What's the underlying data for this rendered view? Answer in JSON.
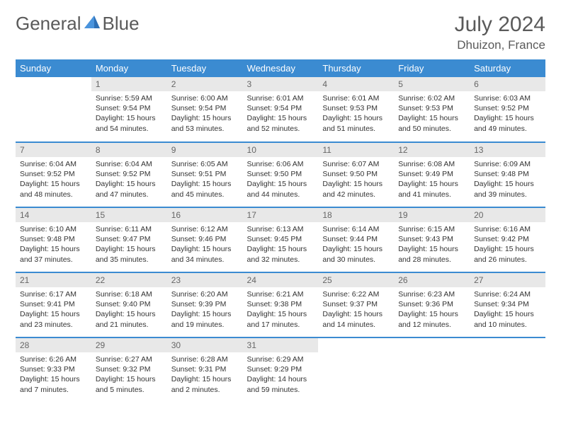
{
  "logo": {
    "word1": "General",
    "word2": "Blue"
  },
  "title": "July 2024",
  "location": "Dhuizon, France",
  "colors": {
    "header_bg": "#3b8bd1",
    "header_fg": "#ffffff",
    "row_divider": "#3b8bd1",
    "daynum_bg": "#e8e8e8",
    "text": "#333333",
    "muted": "#5a5a5a"
  },
  "weekdays": [
    "Sunday",
    "Monday",
    "Tuesday",
    "Wednesday",
    "Thursday",
    "Friday",
    "Saturday"
  ],
  "weeks": [
    [
      {
        "n": "",
        "sr": "",
        "ss": "",
        "dl": ""
      },
      {
        "n": "1",
        "sr": "5:59 AM",
        "ss": "9:54 PM",
        "dl": "15 hours and 54 minutes."
      },
      {
        "n": "2",
        "sr": "6:00 AM",
        "ss": "9:54 PM",
        "dl": "15 hours and 53 minutes."
      },
      {
        "n": "3",
        "sr": "6:01 AM",
        "ss": "9:54 PM",
        "dl": "15 hours and 52 minutes."
      },
      {
        "n": "4",
        "sr": "6:01 AM",
        "ss": "9:53 PM",
        "dl": "15 hours and 51 minutes."
      },
      {
        "n": "5",
        "sr": "6:02 AM",
        "ss": "9:53 PM",
        "dl": "15 hours and 50 minutes."
      },
      {
        "n": "6",
        "sr": "6:03 AM",
        "ss": "9:52 PM",
        "dl": "15 hours and 49 minutes."
      }
    ],
    [
      {
        "n": "7",
        "sr": "6:04 AM",
        "ss": "9:52 PM",
        "dl": "15 hours and 48 minutes."
      },
      {
        "n": "8",
        "sr": "6:04 AM",
        "ss": "9:52 PM",
        "dl": "15 hours and 47 minutes."
      },
      {
        "n": "9",
        "sr": "6:05 AM",
        "ss": "9:51 PM",
        "dl": "15 hours and 45 minutes."
      },
      {
        "n": "10",
        "sr": "6:06 AM",
        "ss": "9:50 PM",
        "dl": "15 hours and 44 minutes."
      },
      {
        "n": "11",
        "sr": "6:07 AM",
        "ss": "9:50 PM",
        "dl": "15 hours and 42 minutes."
      },
      {
        "n": "12",
        "sr": "6:08 AM",
        "ss": "9:49 PM",
        "dl": "15 hours and 41 minutes."
      },
      {
        "n": "13",
        "sr": "6:09 AM",
        "ss": "9:48 PM",
        "dl": "15 hours and 39 minutes."
      }
    ],
    [
      {
        "n": "14",
        "sr": "6:10 AM",
        "ss": "9:48 PM",
        "dl": "15 hours and 37 minutes."
      },
      {
        "n": "15",
        "sr": "6:11 AM",
        "ss": "9:47 PM",
        "dl": "15 hours and 35 minutes."
      },
      {
        "n": "16",
        "sr": "6:12 AM",
        "ss": "9:46 PM",
        "dl": "15 hours and 34 minutes."
      },
      {
        "n": "17",
        "sr": "6:13 AM",
        "ss": "9:45 PM",
        "dl": "15 hours and 32 minutes."
      },
      {
        "n": "18",
        "sr": "6:14 AM",
        "ss": "9:44 PM",
        "dl": "15 hours and 30 minutes."
      },
      {
        "n": "19",
        "sr": "6:15 AM",
        "ss": "9:43 PM",
        "dl": "15 hours and 28 minutes."
      },
      {
        "n": "20",
        "sr": "6:16 AM",
        "ss": "9:42 PM",
        "dl": "15 hours and 26 minutes."
      }
    ],
    [
      {
        "n": "21",
        "sr": "6:17 AM",
        "ss": "9:41 PM",
        "dl": "15 hours and 23 minutes."
      },
      {
        "n": "22",
        "sr": "6:18 AM",
        "ss": "9:40 PM",
        "dl": "15 hours and 21 minutes."
      },
      {
        "n": "23",
        "sr": "6:20 AM",
        "ss": "9:39 PM",
        "dl": "15 hours and 19 minutes."
      },
      {
        "n": "24",
        "sr": "6:21 AM",
        "ss": "9:38 PM",
        "dl": "15 hours and 17 minutes."
      },
      {
        "n": "25",
        "sr": "6:22 AM",
        "ss": "9:37 PM",
        "dl": "15 hours and 14 minutes."
      },
      {
        "n": "26",
        "sr": "6:23 AM",
        "ss": "9:36 PM",
        "dl": "15 hours and 12 minutes."
      },
      {
        "n": "27",
        "sr": "6:24 AM",
        "ss": "9:34 PM",
        "dl": "15 hours and 10 minutes."
      }
    ],
    [
      {
        "n": "28",
        "sr": "6:26 AM",
        "ss": "9:33 PM",
        "dl": "15 hours and 7 minutes."
      },
      {
        "n": "29",
        "sr": "6:27 AM",
        "ss": "9:32 PM",
        "dl": "15 hours and 5 minutes."
      },
      {
        "n": "30",
        "sr": "6:28 AM",
        "ss": "9:31 PM",
        "dl": "15 hours and 2 minutes."
      },
      {
        "n": "31",
        "sr": "6:29 AM",
        "ss": "9:29 PM",
        "dl": "14 hours and 59 minutes."
      },
      {
        "n": "",
        "sr": "",
        "ss": "",
        "dl": ""
      },
      {
        "n": "",
        "sr": "",
        "ss": "",
        "dl": ""
      },
      {
        "n": "",
        "sr": "",
        "ss": "",
        "dl": ""
      }
    ]
  ],
  "labels": {
    "sunrise": "Sunrise:",
    "sunset": "Sunset:",
    "daylight": "Daylight:"
  }
}
